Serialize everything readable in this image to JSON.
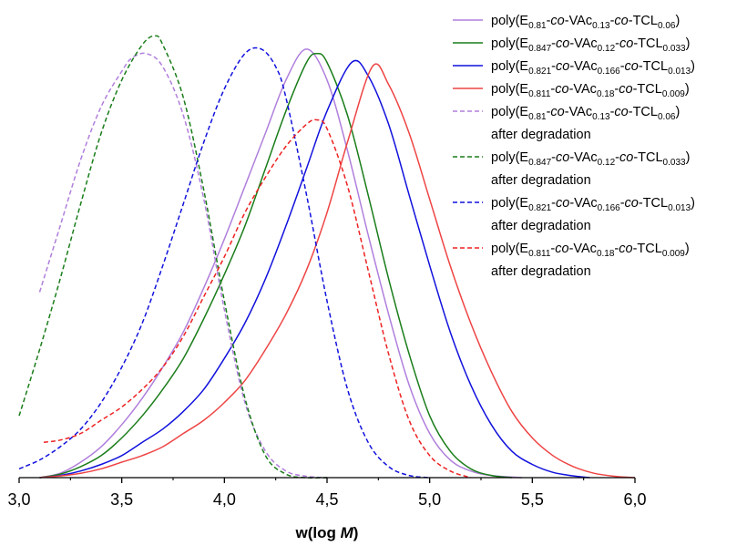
{
  "chart_data": {
    "type": "line",
    "xlabel": "w(log M)",
    "xlabel_prefix": "w(log ",
    "xlabel_var": "M",
    "xlabel_suffix": ")",
    "ylabel": "",
    "xlim": [
      3.0,
      6.0
    ],
    "ylim": [
      0,
      1.04
    ],
    "xticks": [
      "3,0",
      "3,5",
      "4,0",
      "4,5",
      "5,0",
      "5,5",
      "6,0"
    ],
    "xtick_values": [
      3.0,
      3.5,
      4.0,
      4.5,
      5.0,
      5.5,
      6.0
    ],
    "grid": false,
    "legend_position": "top-right",
    "series": [
      {
        "name": "poly(E0.81-co-VAc0.13-co-TCL0.06)",
        "legend_parts": [
          [
            "poly(E",
            "n"
          ],
          [
            "0.81",
            "sub"
          ],
          [
            "-",
            "n"
          ],
          [
            "co",
            "i"
          ],
          [
            "-VAc",
            "n"
          ],
          [
            "0.13",
            "sub"
          ],
          [
            "-",
            "n"
          ],
          [
            "co",
            "i"
          ],
          [
            "-TCL",
            "n"
          ],
          [
            "0.06",
            "sub"
          ],
          [
            ")",
            "n"
          ]
        ],
        "color": "#b07fdc",
        "dash": "solid",
        "x": [
          3.1,
          3.2,
          3.3,
          3.4,
          3.5,
          3.6,
          3.7,
          3.8,
          3.9,
          4.0,
          4.1,
          4.2,
          4.3,
          4.4,
          4.5,
          4.6,
          4.7,
          4.8,
          4.9,
          5.0,
          5.1,
          5.2,
          5.3,
          5.45
        ],
        "y": [
          0.0,
          0.01,
          0.035,
          0.07,
          0.12,
          0.18,
          0.25,
          0.33,
          0.43,
          0.54,
          0.66,
          0.78,
          0.9,
          0.97,
          0.9,
          0.74,
          0.55,
          0.37,
          0.21,
          0.1,
          0.04,
          0.015,
          0.005,
          0.0
        ]
      },
      {
        "name": "poly(E0.847-co-VAc0.12-co-TCL0.033)",
        "legend_parts": [
          [
            "poly(E",
            "n"
          ],
          [
            "0.847",
            "sub"
          ],
          [
            "-",
            "n"
          ],
          [
            "co",
            "i"
          ],
          [
            "-VAc",
            "n"
          ],
          [
            "0.12",
            "sub"
          ],
          [
            "-",
            "n"
          ],
          [
            "co",
            "i"
          ],
          [
            "-TCL",
            "n"
          ],
          [
            "0.033",
            "sub"
          ],
          [
            ")",
            "n"
          ]
        ],
        "color": "#1a7d1a",
        "dash": "solid",
        "x": [
          3.1,
          3.2,
          3.3,
          3.4,
          3.5,
          3.6,
          3.7,
          3.8,
          3.9,
          4.0,
          4.1,
          4.2,
          4.3,
          4.4,
          4.45,
          4.5,
          4.6,
          4.7,
          4.8,
          4.9,
          5.0,
          5.1,
          5.2,
          5.3,
          5.4
        ],
        "y": [
          0.0,
          0.008,
          0.025,
          0.05,
          0.09,
          0.14,
          0.2,
          0.27,
          0.36,
          0.46,
          0.57,
          0.7,
          0.83,
          0.94,
          0.96,
          0.94,
          0.82,
          0.64,
          0.45,
          0.28,
          0.14,
          0.06,
          0.02,
          0.005,
          0.0
        ]
      },
      {
        "name": "poly(E0.821-co-VAc0.166-co-TCL0.013)",
        "legend_parts": [
          [
            "poly(E",
            "n"
          ],
          [
            "0.821",
            "sub"
          ],
          [
            "-",
            "n"
          ],
          [
            "co",
            "i"
          ],
          [
            "-VAc",
            "n"
          ],
          [
            "0.166",
            "sub"
          ],
          [
            "-",
            "n"
          ],
          [
            "co",
            "i"
          ],
          [
            "-TCL",
            "n"
          ],
          [
            "0.013",
            "sub"
          ],
          [
            ")",
            "n"
          ]
        ],
        "color": "#1111dd",
        "dash": "solid",
        "x": [
          3.1,
          3.2,
          3.3,
          3.4,
          3.5,
          3.6,
          3.7,
          3.8,
          3.9,
          4.0,
          4.1,
          4.2,
          4.3,
          4.4,
          4.5,
          4.62,
          4.7,
          4.8,
          4.9,
          5.0,
          5.1,
          5.2,
          5.3,
          5.4,
          5.5,
          5.6,
          5.7,
          5.78
        ],
        "y": [
          0.0,
          0.005,
          0.015,
          0.03,
          0.05,
          0.08,
          0.11,
          0.15,
          0.2,
          0.27,
          0.35,
          0.45,
          0.57,
          0.7,
          0.83,
          0.94,
          0.91,
          0.8,
          0.64,
          0.48,
          0.33,
          0.21,
          0.12,
          0.06,
          0.03,
          0.012,
          0.004,
          0.0
        ]
      },
      {
        "name": "poly(E0.811-co-VAc0.18-co-TCL0.009)",
        "legend_parts": [
          [
            "poly(E",
            "n"
          ],
          [
            "0.811",
            "sub"
          ],
          [
            "-",
            "n"
          ],
          [
            "co",
            "i"
          ],
          [
            "-VAc",
            "n"
          ],
          [
            "0.18",
            "sub"
          ],
          [
            "-",
            "n"
          ],
          [
            "co",
            "i"
          ],
          [
            "-TCL",
            "n"
          ],
          [
            "0.009",
            "sub"
          ],
          [
            ")",
            "n"
          ]
        ],
        "color": "#ee4444",
        "dash": "solid",
        "x": [
          3.1,
          3.2,
          3.3,
          3.4,
          3.5,
          3.6,
          3.7,
          3.8,
          3.9,
          4.0,
          4.1,
          4.2,
          4.3,
          4.4,
          4.5,
          4.6,
          4.72,
          4.8,
          4.9,
          5.0,
          5.1,
          5.2,
          5.3,
          5.4,
          5.5,
          5.6,
          5.7,
          5.8,
          5.9,
          6.0
        ],
        "y": [
          0.0,
          0.004,
          0.01,
          0.02,
          0.035,
          0.05,
          0.07,
          0.1,
          0.13,
          0.17,
          0.22,
          0.29,
          0.37,
          0.47,
          0.6,
          0.76,
          0.93,
          0.89,
          0.78,
          0.63,
          0.48,
          0.35,
          0.24,
          0.15,
          0.09,
          0.05,
          0.025,
          0.01,
          0.003,
          0.0
        ]
      },
      {
        "name": "poly(E0.81-co-VAc0.13-co-TCL0.06) after degradation",
        "legend_parts": [
          [
            "poly(E",
            "n"
          ],
          [
            "0.81",
            "sub"
          ],
          [
            "-",
            "n"
          ],
          [
            "co",
            "i"
          ],
          [
            "-VAc",
            "n"
          ],
          [
            "0.13",
            "sub"
          ],
          [
            "-",
            "n"
          ],
          [
            "co",
            "i"
          ],
          [
            "-TCL",
            "n"
          ],
          [
            "0.06",
            "sub"
          ],
          [
            ")",
            "n"
          ]
        ],
        "legend_line2": "after degradation",
        "color": "#b07fdc",
        "dash": "dashed",
        "x": [
          3.1,
          3.2,
          3.3,
          3.4,
          3.5,
          3.55,
          3.62,
          3.7,
          3.8,
          3.9,
          4.0,
          4.1,
          4.2,
          4.3,
          4.4,
          4.5
        ],
        "y": [
          0.42,
          0.57,
          0.72,
          0.84,
          0.92,
          0.95,
          0.96,
          0.93,
          0.82,
          0.63,
          0.38,
          0.17,
          0.06,
          0.015,
          0.003,
          0.0
        ]
      },
      {
        "name": "poly(E0.847-co-VAc0.12-co-TCL0.033) after degradation",
        "legend_parts": [
          [
            "poly(E",
            "n"
          ],
          [
            "0.847",
            "sub"
          ],
          [
            "-",
            "n"
          ],
          [
            "co",
            "i"
          ],
          [
            "-VAc",
            "n"
          ],
          [
            "0.12",
            "sub"
          ],
          [
            "-",
            "n"
          ],
          [
            "co",
            "i"
          ],
          [
            "-TCL",
            "n"
          ],
          [
            "0.033",
            "sub"
          ],
          [
            ")",
            "n"
          ]
        ],
        "legend_line2": "after degradation",
        "color": "#1a7d1a",
        "dash": "dashed",
        "x": [
          3.0,
          3.1,
          3.2,
          3.3,
          3.4,
          3.5,
          3.6,
          3.66,
          3.7,
          3.8,
          3.9,
          4.0,
          4.1,
          4.2,
          4.3,
          4.4,
          4.5
        ],
        "y": [
          0.14,
          0.29,
          0.45,
          0.62,
          0.78,
          0.9,
          0.98,
          1.0,
          0.98,
          0.86,
          0.65,
          0.4,
          0.18,
          0.05,
          0.008,
          0.0,
          0.0
        ]
      },
      {
        "name": "poly(E0.821-co-VAc0.166-co-TCL0.013) after degradation",
        "legend_parts": [
          [
            "poly(E",
            "n"
          ],
          [
            "0.821",
            "sub"
          ],
          [
            "-",
            "n"
          ],
          [
            "co",
            "i"
          ],
          [
            "-VAc",
            "n"
          ],
          [
            "0.166",
            "sub"
          ],
          [
            "-",
            "n"
          ],
          [
            "co",
            "i"
          ],
          [
            "-TCL",
            "n"
          ],
          [
            "0.013",
            "sub"
          ],
          [
            ")",
            "n"
          ]
        ],
        "legend_line2": "after degradation",
        "color": "#1111dd",
        "dash": "dashed",
        "x": [
          3.0,
          3.1,
          3.2,
          3.3,
          3.4,
          3.5,
          3.6,
          3.7,
          3.8,
          3.9,
          4.0,
          4.1,
          4.18,
          4.25,
          4.3,
          4.4,
          4.5,
          4.6,
          4.7,
          4.8,
          4.9,
          5.0
        ],
        "y": [
          0.02,
          0.04,
          0.07,
          0.11,
          0.17,
          0.25,
          0.35,
          0.48,
          0.62,
          0.76,
          0.88,
          0.96,
          0.97,
          0.93,
          0.86,
          0.64,
          0.4,
          0.2,
          0.08,
          0.025,
          0.005,
          0.0
        ]
      },
      {
        "name": "poly(E0.811-co-VAc0.18-co-TCL0.009) after degradation",
        "legend_parts": [
          [
            "poly(E",
            "n"
          ],
          [
            "0.811",
            "sub"
          ],
          [
            "-",
            "n"
          ],
          [
            "co",
            "i"
          ],
          [
            "-VAc",
            "n"
          ],
          [
            "0.18",
            "sub"
          ],
          [
            "-",
            "n"
          ],
          [
            "co",
            "i"
          ],
          [
            "-TCL",
            "n"
          ],
          [
            "0.009",
            "sub"
          ],
          [
            ")",
            "n"
          ]
        ],
        "legend_line2": "after degradation",
        "color": "#ee2222",
        "dash": "dashed",
        "x": [
          3.12,
          3.2,
          3.3,
          3.4,
          3.5,
          3.6,
          3.7,
          3.8,
          3.9,
          4.0,
          4.1,
          4.2,
          4.3,
          4.4,
          4.45,
          4.5,
          4.6,
          4.7,
          4.8,
          4.9,
          5.0,
          5.1,
          5.2
        ],
        "y": [
          0.08,
          0.085,
          0.1,
          0.13,
          0.16,
          0.2,
          0.25,
          0.32,
          0.41,
          0.5,
          0.6,
          0.68,
          0.75,
          0.8,
          0.81,
          0.79,
          0.66,
          0.47,
          0.28,
          0.13,
          0.05,
          0.015,
          0.0
        ]
      }
    ]
  }
}
